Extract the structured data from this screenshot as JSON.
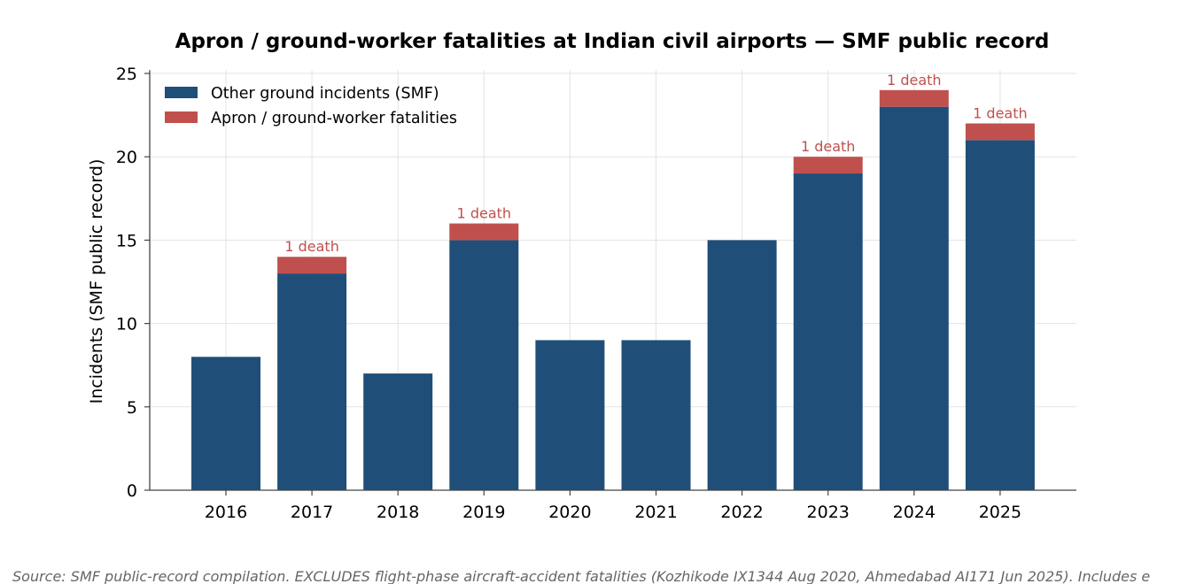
{
  "chart_data": {
    "type": "bar",
    "stacked": true,
    "title": "Apron / ground-worker fatalities at Indian civil airports — SMF public record",
    "xlabel": "",
    "ylabel": "Incidents (SMF public record)",
    "ylim": [
      0,
      25.2
    ],
    "yticks": [
      0,
      5,
      10,
      15,
      20,
      25
    ],
    "grid": true,
    "legend_position": "top-left",
    "categories": [
      "2016",
      "2017",
      "2018",
      "2019",
      "2020",
      "2021",
      "2022",
      "2023",
      "2024",
      "2025"
    ],
    "series": [
      {
        "name": "Other ground incidents (SMF)",
        "color": "#1f4e79",
        "values": [
          8,
          13,
          7,
          15,
          9,
          9,
          15,
          19,
          23,
          21
        ]
      },
      {
        "name": "Apron / ground-worker fatalities",
        "color": "#c0504d",
        "values": [
          0,
          1,
          0,
          1,
          0,
          0,
          0,
          1,
          1,
          1
        ]
      }
    ],
    "annotations": [
      "",
      "1 death",
      "",
      "1 death",
      "",
      "",
      "",
      "1 death",
      "1 death",
      "1 death"
    ],
    "source": "Source: SMF public-record compilation. EXCLUDES flight-phase aircraft-accident fatalities (Kozhikode IX1344 Aug 2020, Ahmedabad AI171 Jun 2025). Includes e"
  }
}
